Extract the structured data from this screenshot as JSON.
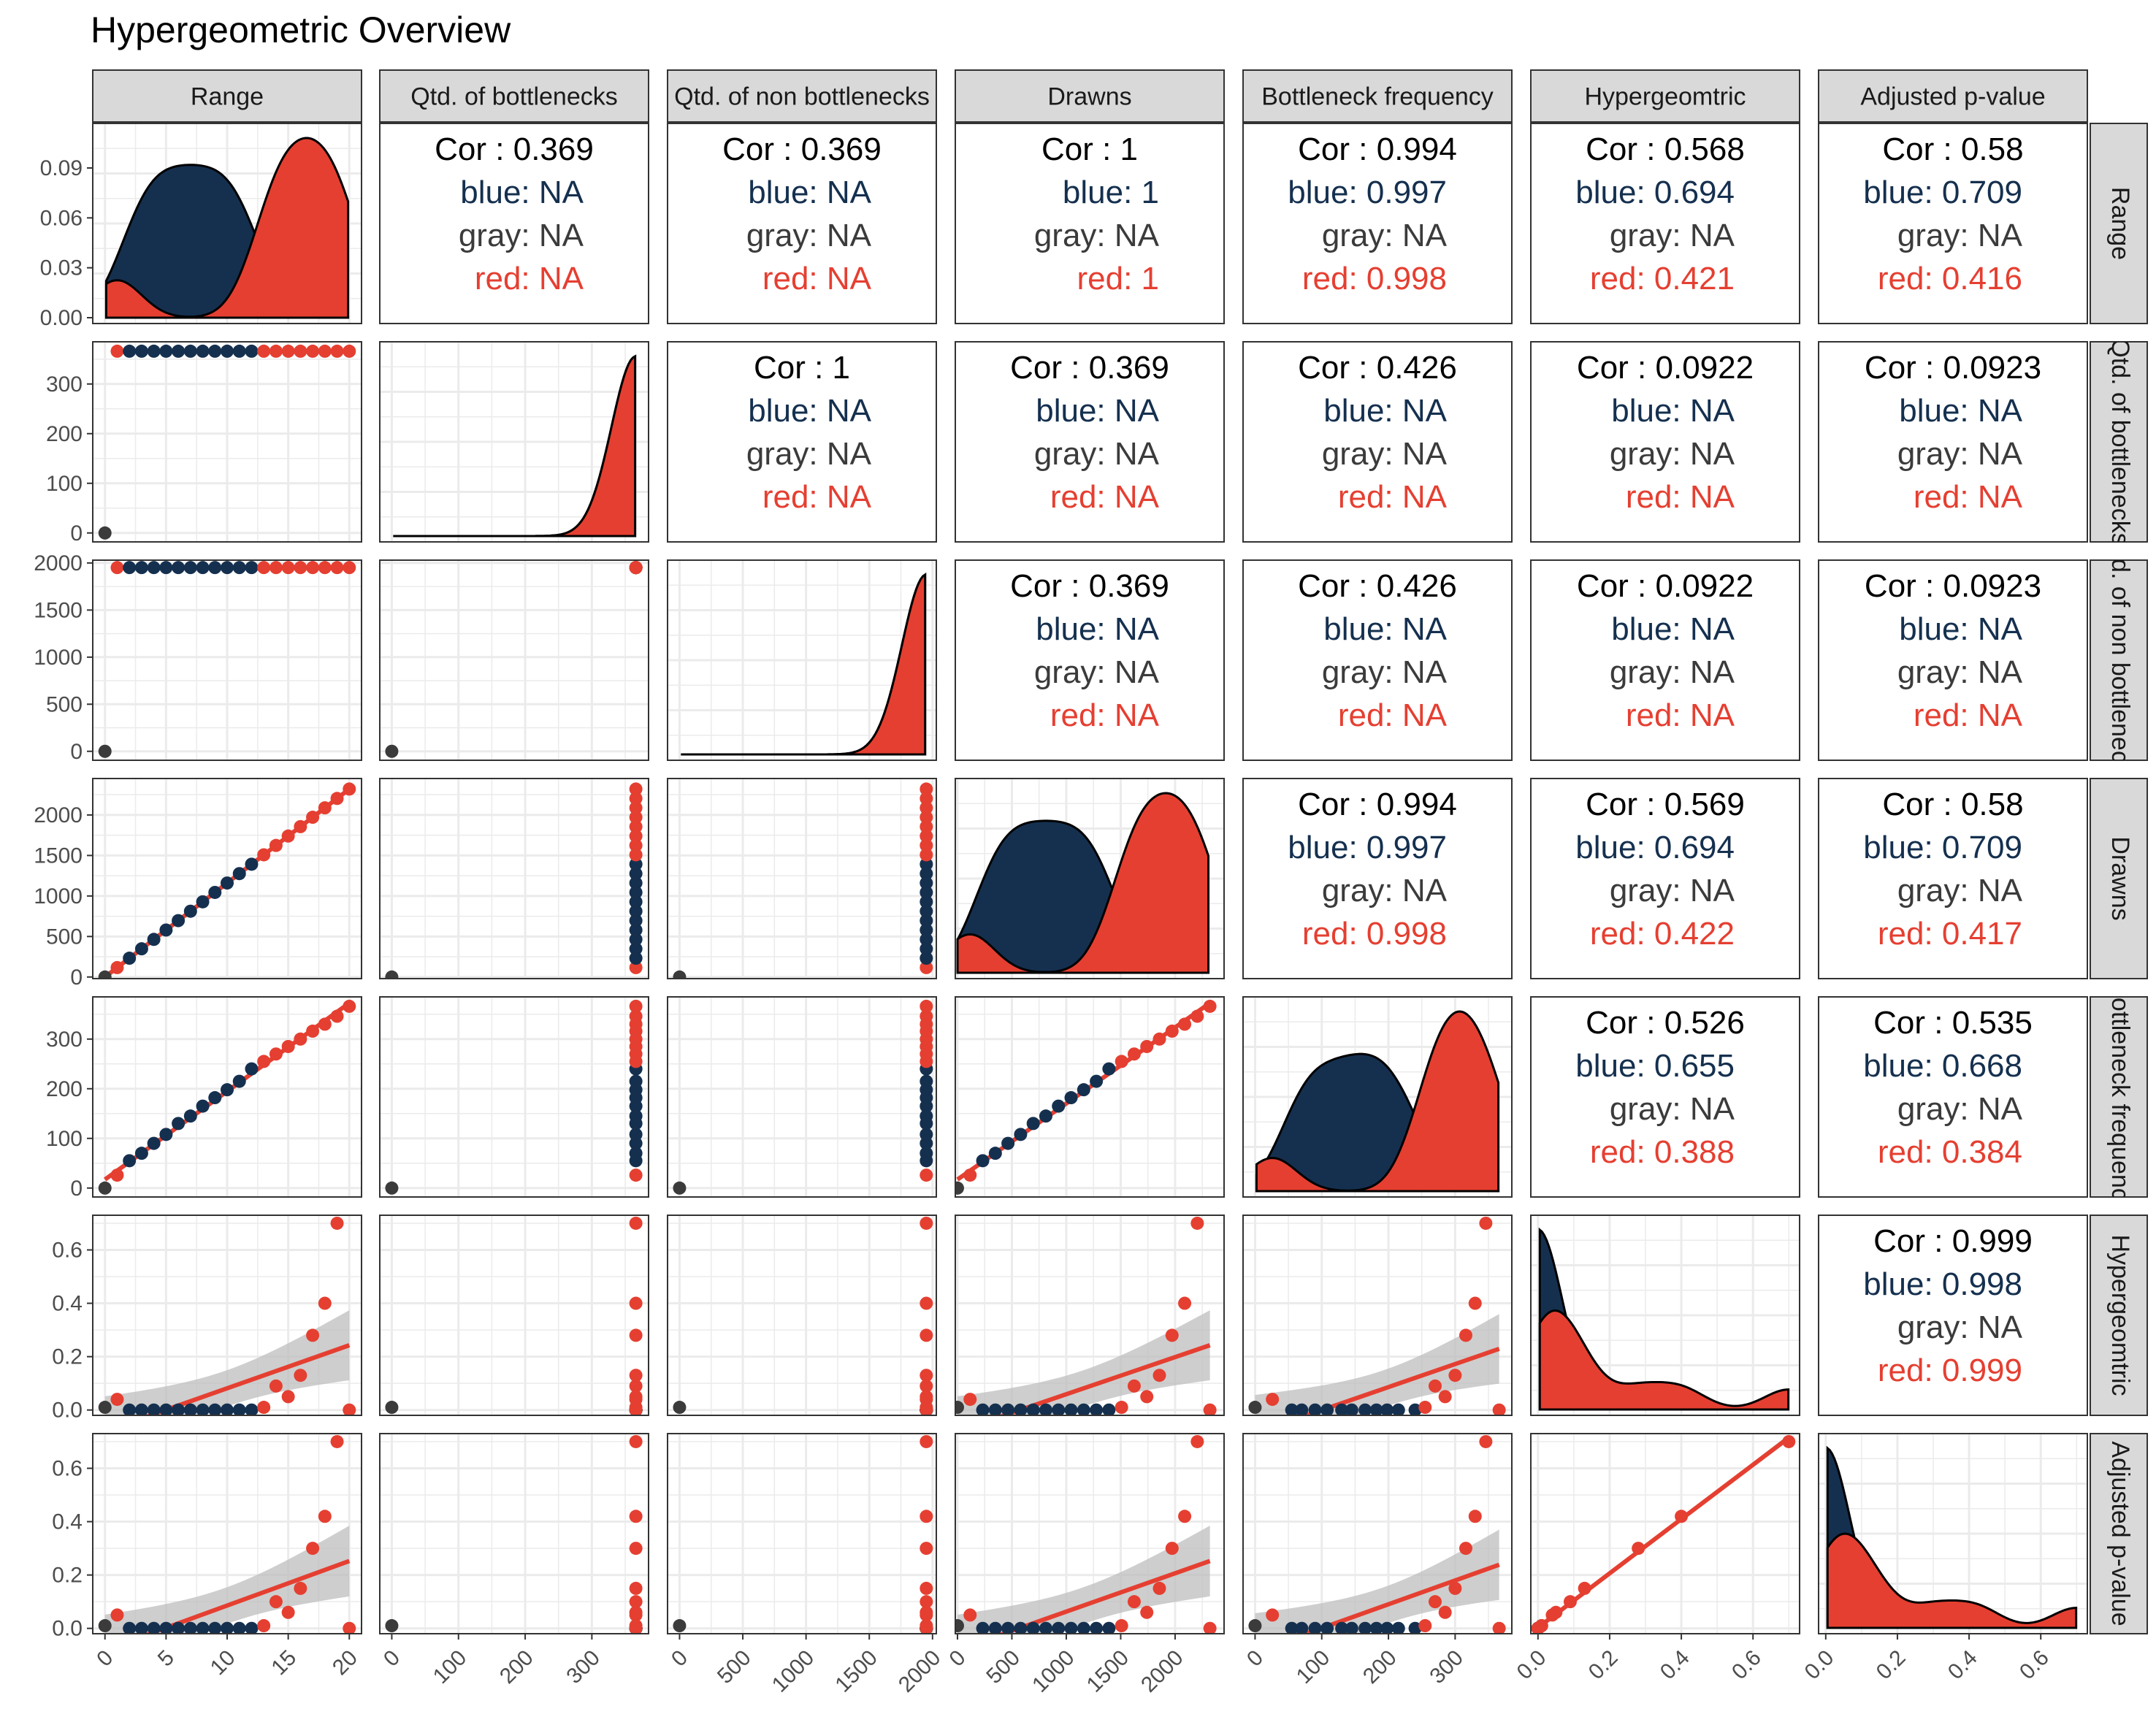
{
  "title": "Hypergeometric Overview",
  "variables": [
    "Range",
    "Qtd. of bottlenecks",
    "Qtd. of non bottlenecks",
    "Drawns",
    "Bottleneck frequency",
    "Hypergeomtric",
    "Adjusted p-value"
  ],
  "colors": {
    "blue": "#15304f",
    "gray": "#3b3b3b",
    "red": "#e53f31",
    "strip_bg": "#d9d9d9",
    "grid": "#ebebeb",
    "ribbon": "#bdbdbd"
  },
  "chart_data": {
    "type": "scatter",
    "plot_kind": "pairs plot (scatterplot matrix)",
    "groups": [
      "blue",
      "gray",
      "red"
    ],
    "axis_ranges": {
      "Range": [
        -1,
        21
      ],
      "Qtd. of bottlenecks": [
        -18,
        385
      ],
      "Qtd. of non bottlenecks": [
        -95,
        2030
      ],
      "Drawns": [
        -20,
        2450
      ],
      "Bottleneck frequency": [
        -18,
        385
      ],
      "Hypergeomtric": [
        -0.02,
        0.73
      ],
      "Adjusted p-value": [
        -0.02,
        0.73
      ]
    },
    "row_ticks": {
      "Range": [
        "0.00",
        "0.03",
        "0.06",
        "0.09"
      ],
      "Qtd. of bottlenecks": [
        "0",
        "100",
        "200",
        "300"
      ],
      "Qtd. of non bottlenecks": [
        "0",
        "500",
        "1000",
        "1500",
        "2000"
      ],
      "Drawns": [
        "0",
        "500",
        "1000",
        "1500",
        "2000"
      ],
      "Bottleneck frequency": [
        "0",
        "100",
        "200",
        "300"
      ],
      "Hypergeomtric": [
        "0.0",
        "0.2",
        "0.4",
        "0.6"
      ],
      "Adjusted p-value": [
        "0.0",
        "0.2",
        "0.4",
        "0.6"
      ]
    },
    "row_tick_values": {
      "Range": [
        0,
        0.03,
        0.06,
        0.09
      ],
      "Qtd. of bottlenecks": [
        0,
        100,
        200,
        300
      ],
      "Qtd. of non bottlenecks": [
        0,
        500,
        1000,
        1500,
        2000
      ],
      "Drawns": [
        0,
        500,
        1000,
        1500,
        2000
      ],
      "Bottleneck frequency": [
        0,
        100,
        200,
        300
      ],
      "Hypergeomtric": [
        0,
        0.2,
        0.4,
        0.6
      ],
      "Adjusted p-value": [
        0,
        0.2,
        0.4,
        0.6
      ]
    },
    "col_ticks": {
      "Range": [
        "0",
        "5",
        "10",
        "15",
        "20"
      ],
      "Qtd. of bottlenecks": [
        "0",
        "100",
        "200",
        "300"
      ],
      "Qtd. of non bottlenecks": [
        "0",
        "500",
        "1000",
        "1500",
        "2000"
      ],
      "Drawns": [
        "0",
        "500",
        "1000",
        "1500",
        "2000"
      ],
      "Bottleneck frequency": [
        "0",
        "100",
        "200",
        "300"
      ],
      "Hypergeomtric": [
        "0.0",
        "0.2",
        "0.4",
        "0.6"
      ],
      "Adjusted p-value": [
        "0.0",
        "0.2",
        "0.4",
        "0.6"
      ]
    },
    "col_tick_values": {
      "Range": [
        0,
        5,
        10,
        15,
        20
      ],
      "Qtd. of bottlenecks": [
        0,
        100,
        200,
        300
      ],
      "Qtd. of non bottlenecks": [
        0,
        500,
        1000,
        1500,
        2000
      ],
      "Drawns": [
        0,
        500,
        1000,
        1500,
        2000
      ],
      "Bottleneck frequency": [
        0,
        100,
        200,
        300
      ],
      "Hypergeomtric": [
        0,
        0.2,
        0.4,
        0.6
      ],
      "Adjusted p-value": [
        0,
        0.2,
        0.4,
        0.6
      ]
    },
    "observations": [
      {
        "group": "gray",
        "Range": 0,
        "Qtd. of bottlenecks": 0,
        "Qtd. of non bottlenecks": 0,
        "Drawns": 0,
        "Bottleneck frequency": 0,
        "Hypergeomtric": 0.01,
        "Adjusted p-value": 0.01
      },
      {
        "group": "red",
        "Range": 1,
        "Qtd. of bottlenecks": 366,
        "Qtd. of non bottlenecks": 1951,
        "Drawns": 116,
        "Bottleneck frequency": 26,
        "Hypergeomtric": 0.04,
        "Adjusted p-value": 0.05
      },
      {
        "group": "blue",
        "Range": 2,
        "Qtd. of bottlenecks": 366,
        "Qtd. of non bottlenecks": 1951,
        "Drawns": 232,
        "Bottleneck frequency": 55,
        "Hypergeomtric": 0.0,
        "Adjusted p-value": 0.0
      },
      {
        "group": "blue",
        "Range": 3,
        "Qtd. of bottlenecks": 366,
        "Qtd. of non bottlenecks": 1951,
        "Drawns": 348,
        "Bottleneck frequency": 70,
        "Hypergeomtric": 0.0,
        "Adjusted p-value": 0.0
      },
      {
        "group": "blue",
        "Range": 4,
        "Qtd. of bottlenecks": 366,
        "Qtd. of non bottlenecks": 1951,
        "Drawns": 464,
        "Bottleneck frequency": 90,
        "Hypergeomtric": 0.0,
        "Adjusted p-value": 0.0
      },
      {
        "group": "blue",
        "Range": 5,
        "Qtd. of bottlenecks": 366,
        "Qtd. of non bottlenecks": 1951,
        "Drawns": 580,
        "Bottleneck frequency": 108,
        "Hypergeomtric": 0.0,
        "Adjusted p-value": 0.0
      },
      {
        "group": "blue",
        "Range": 6,
        "Qtd. of bottlenecks": 366,
        "Qtd. of non bottlenecks": 1951,
        "Drawns": 696,
        "Bottleneck frequency": 130,
        "Hypergeomtric": 0.0,
        "Adjusted p-value": 0.0
      },
      {
        "group": "blue",
        "Range": 7,
        "Qtd. of bottlenecks": 366,
        "Qtd. of non bottlenecks": 1951,
        "Drawns": 812,
        "Bottleneck frequency": 145,
        "Hypergeomtric": 0.0,
        "Adjusted p-value": 0.0
      },
      {
        "group": "blue",
        "Range": 8,
        "Qtd. of bottlenecks": 366,
        "Qtd. of non bottlenecks": 1951,
        "Drawns": 928,
        "Bottleneck frequency": 165,
        "Hypergeomtric": 0.0,
        "Adjusted p-value": 0.0
      },
      {
        "group": "blue",
        "Range": 9,
        "Qtd. of bottlenecks": 366,
        "Qtd. of non bottlenecks": 1951,
        "Drawns": 1044,
        "Bottleneck frequency": 182,
        "Hypergeomtric": 0.0,
        "Adjusted p-value": 0.0
      },
      {
        "group": "blue",
        "Range": 10,
        "Qtd. of bottlenecks": 366,
        "Qtd. of non bottlenecks": 1951,
        "Drawns": 1160,
        "Bottleneck frequency": 198,
        "Hypergeomtric": 0.0,
        "Adjusted p-value": 0.0
      },
      {
        "group": "blue",
        "Range": 11,
        "Qtd. of bottlenecks": 366,
        "Qtd. of non bottlenecks": 1951,
        "Drawns": 1276,
        "Bottleneck frequency": 215,
        "Hypergeomtric": 0.0,
        "Adjusted p-value": 0.0
      },
      {
        "group": "blue",
        "Range": 12,
        "Qtd. of bottlenecks": 366,
        "Qtd. of non bottlenecks": 1951,
        "Drawns": 1392,
        "Bottleneck frequency": 240,
        "Hypergeomtric": 0.0,
        "Adjusted p-value": 0.0
      },
      {
        "group": "red",
        "Range": 13,
        "Qtd. of bottlenecks": 366,
        "Qtd. of non bottlenecks": 1951,
        "Drawns": 1508,
        "Bottleneck frequency": 255,
        "Hypergeomtric": 0.01,
        "Adjusted p-value": 0.01
      },
      {
        "group": "red",
        "Range": 14,
        "Qtd. of bottlenecks": 366,
        "Qtd. of non bottlenecks": 1951,
        "Drawns": 1624,
        "Bottleneck frequency": 270,
        "Hypergeomtric": 0.09,
        "Adjusted p-value": 0.1
      },
      {
        "group": "red",
        "Range": 15,
        "Qtd. of bottlenecks": 366,
        "Qtd. of non bottlenecks": 1951,
        "Drawns": 1740,
        "Bottleneck frequency": 285,
        "Hypergeomtric": 0.05,
        "Adjusted p-value": 0.06
      },
      {
        "group": "red",
        "Range": 16,
        "Qtd. of bottlenecks": 366,
        "Qtd. of non bottlenecks": 1951,
        "Drawns": 1856,
        "Bottleneck frequency": 300,
        "Hypergeomtric": 0.13,
        "Adjusted p-value": 0.15
      },
      {
        "group": "red",
        "Range": 17,
        "Qtd. of bottlenecks": 366,
        "Qtd. of non bottlenecks": 1951,
        "Drawns": 1972,
        "Bottleneck frequency": 316,
        "Hypergeomtric": 0.28,
        "Adjusted p-value": 0.3
      },
      {
        "group": "red",
        "Range": 18,
        "Qtd. of bottlenecks": 366,
        "Qtd. of non bottlenecks": 1951,
        "Drawns": 2088,
        "Bottleneck frequency": 330,
        "Hypergeomtric": 0.4,
        "Adjusted p-value": 0.42
      },
      {
        "group": "red",
        "Range": 19,
        "Qtd. of bottlenecks": 366,
        "Qtd. of non bottlenecks": 1951,
        "Drawns": 2204,
        "Bottleneck frequency": 346,
        "Hypergeomtric": 0.7,
        "Adjusted p-value": 0.7
      },
      {
        "group": "red",
        "Range": 20,
        "Qtd. of bottlenecks": 366,
        "Qtd. of non bottlenecks": 1951,
        "Drawns": 2320,
        "Bottleneck frequency": 366,
        "Hypergeomtric": 0.0,
        "Adjusted p-value": 0.0
      }
    ],
    "correlations": [
      {
        "row": 0,
        "col": 1,
        "cor": "Cor : 0.369",
        "blue": "blue: NA",
        "gray": "gray: NA",
        "red": "red: NA"
      },
      {
        "row": 0,
        "col": 2,
        "cor": "Cor : 0.369",
        "blue": "blue: NA",
        "gray": "gray: NA",
        "red": "red: NA"
      },
      {
        "row": 0,
        "col": 3,
        "cor": "Cor : 1",
        "blue": "blue: 1",
        "gray": "gray: NA",
        "red": "red: 1"
      },
      {
        "row": 0,
        "col": 4,
        "cor": "Cor : 0.994",
        "blue": "blue: 0.997",
        "gray": "gray: NA",
        "red": "red: 0.998"
      },
      {
        "row": 0,
        "col": 5,
        "cor": "Cor : 0.568",
        "blue": "blue: 0.694",
        "gray": "gray: NA",
        "red": "red: 0.421"
      },
      {
        "row": 0,
        "col": 6,
        "cor": "Cor : 0.58",
        "blue": "blue: 0.709",
        "gray": "gray: NA",
        "red": "red: 0.416"
      },
      {
        "row": 1,
        "col": 2,
        "cor": "Cor : 1",
        "blue": "blue: NA",
        "gray": "gray: NA",
        "red": "red: NA"
      },
      {
        "row": 1,
        "col": 3,
        "cor": "Cor : 0.369",
        "blue": "blue: NA",
        "gray": "gray: NA",
        "red": "red: NA"
      },
      {
        "row": 1,
        "col": 4,
        "cor": "Cor : 0.426",
        "blue": "blue: NA",
        "gray": "gray: NA",
        "red": "red: NA"
      },
      {
        "row": 1,
        "col": 5,
        "cor": "Cor : 0.0922",
        "blue": "blue: NA",
        "gray": "gray: NA",
        "red": "red: NA"
      },
      {
        "row": 1,
        "col": 6,
        "cor": "Cor : 0.0923",
        "blue": "blue: NA",
        "gray": "gray: NA",
        "red": "red: NA"
      },
      {
        "row": 2,
        "col": 3,
        "cor": "Cor : 0.369",
        "blue": "blue: NA",
        "gray": "gray: NA",
        "red": "red: NA"
      },
      {
        "row": 2,
        "col": 4,
        "cor": "Cor : 0.426",
        "blue": "blue: NA",
        "gray": "gray: NA",
        "red": "red: NA"
      },
      {
        "row": 2,
        "col": 5,
        "cor": "Cor : 0.0922",
        "blue": "blue: NA",
        "gray": "gray: NA",
        "red": "red: NA"
      },
      {
        "row": 2,
        "col": 6,
        "cor": "Cor : 0.0923",
        "blue": "blue: NA",
        "gray": "gray: NA",
        "red": "red: NA"
      },
      {
        "row": 3,
        "col": 4,
        "cor": "Cor : 0.994",
        "blue": "blue: 0.997",
        "gray": "gray: NA",
        "red": "red: 0.998"
      },
      {
        "row": 3,
        "col": 5,
        "cor": "Cor : 0.569",
        "blue": "blue: 0.694",
        "gray": "gray: NA",
        "red": "red: 0.422"
      },
      {
        "row": 3,
        "col": 6,
        "cor": "Cor : 0.58",
        "blue": "blue: 0.709",
        "gray": "gray: NA",
        "red": "red: 0.417"
      },
      {
        "row": 4,
        "col": 5,
        "cor": "Cor : 0.526",
        "blue": "blue: 0.655",
        "gray": "gray: NA",
        "red": "red: 0.388"
      },
      {
        "row": 4,
        "col": 6,
        "cor": "Cor : 0.535",
        "blue": "blue: 0.668",
        "gray": "gray: NA",
        "red": "red: 0.384"
      },
      {
        "row": 5,
        "col": 6,
        "cor": "Cor : 0.999",
        "blue": "blue: 0.998",
        "gray": "gray: NA",
        "red": "red: 0.999"
      }
    ],
    "grid": true,
    "legend": "none"
  }
}
